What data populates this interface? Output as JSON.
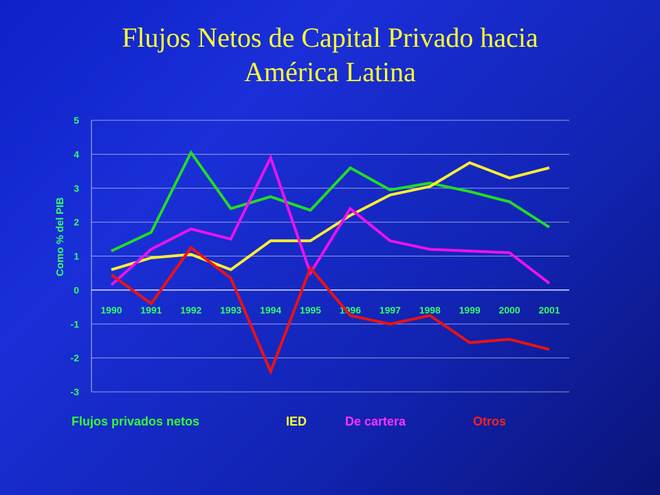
{
  "title_lines": [
    "Flujos Netos de Capital Privado hacia",
    "América Latina"
  ],
  "legend": [
    {
      "label": "Flujos privados netos",
      "color": "#33ff33"
    },
    {
      "label": "IED",
      "color": "#ffff33"
    },
    {
      "label": "De cartera",
      "color": "#ff33ff"
    },
    {
      "label": "Otros",
      "color": "#ff2020"
    }
  ],
  "chart_data": {
    "type": "line",
    "title": "Flujos Netos de Capital Privado hacia América Latina",
    "ylabel": "Como % del PIB",
    "xlabel": "",
    "ylim": [
      -3,
      5
    ],
    "yticks": [
      "5",
      "4",
      "3",
      "2",
      "1",
      "0",
      "-1",
      "-2",
      "-3"
    ],
    "x": [
      "1990",
      "1991",
      "1992",
      "1993",
      "1994",
      "1995",
      "1996",
      "1997",
      "1998",
      "1999",
      "2000",
      "2001"
    ],
    "grid": true,
    "legend_position": "bottom",
    "series": [
      {
        "name": "Flujos privados netos",
        "color": "#22dd22",
        "values": [
          1.15,
          1.7,
          4.05,
          2.4,
          2.75,
          2.35,
          3.6,
          2.95,
          3.15,
          2.9,
          2.6,
          1.85
        ]
      },
      {
        "name": "IED",
        "color": "#ffee33",
        "values": [
          0.6,
          0.95,
          1.05,
          0.6,
          1.45,
          1.45,
          2.2,
          2.8,
          3.05,
          3.75,
          3.3,
          3.6
        ]
      },
      {
        "name": "De cartera",
        "color": "#ee11ee",
        "values": [
          0.15,
          1.2,
          1.8,
          1.5,
          3.9,
          0.5,
          2.4,
          1.45,
          1.2,
          1.15,
          1.1,
          0.2
        ]
      },
      {
        "name": "Otros",
        "color": "#ee1111",
        "values": [
          0.45,
          -0.4,
          1.25,
          0.35,
          -2.4,
          0.65,
          -0.75,
          -1.0,
          -0.75,
          -1.55,
          -1.45,
          -1.75
        ]
      }
    ]
  }
}
